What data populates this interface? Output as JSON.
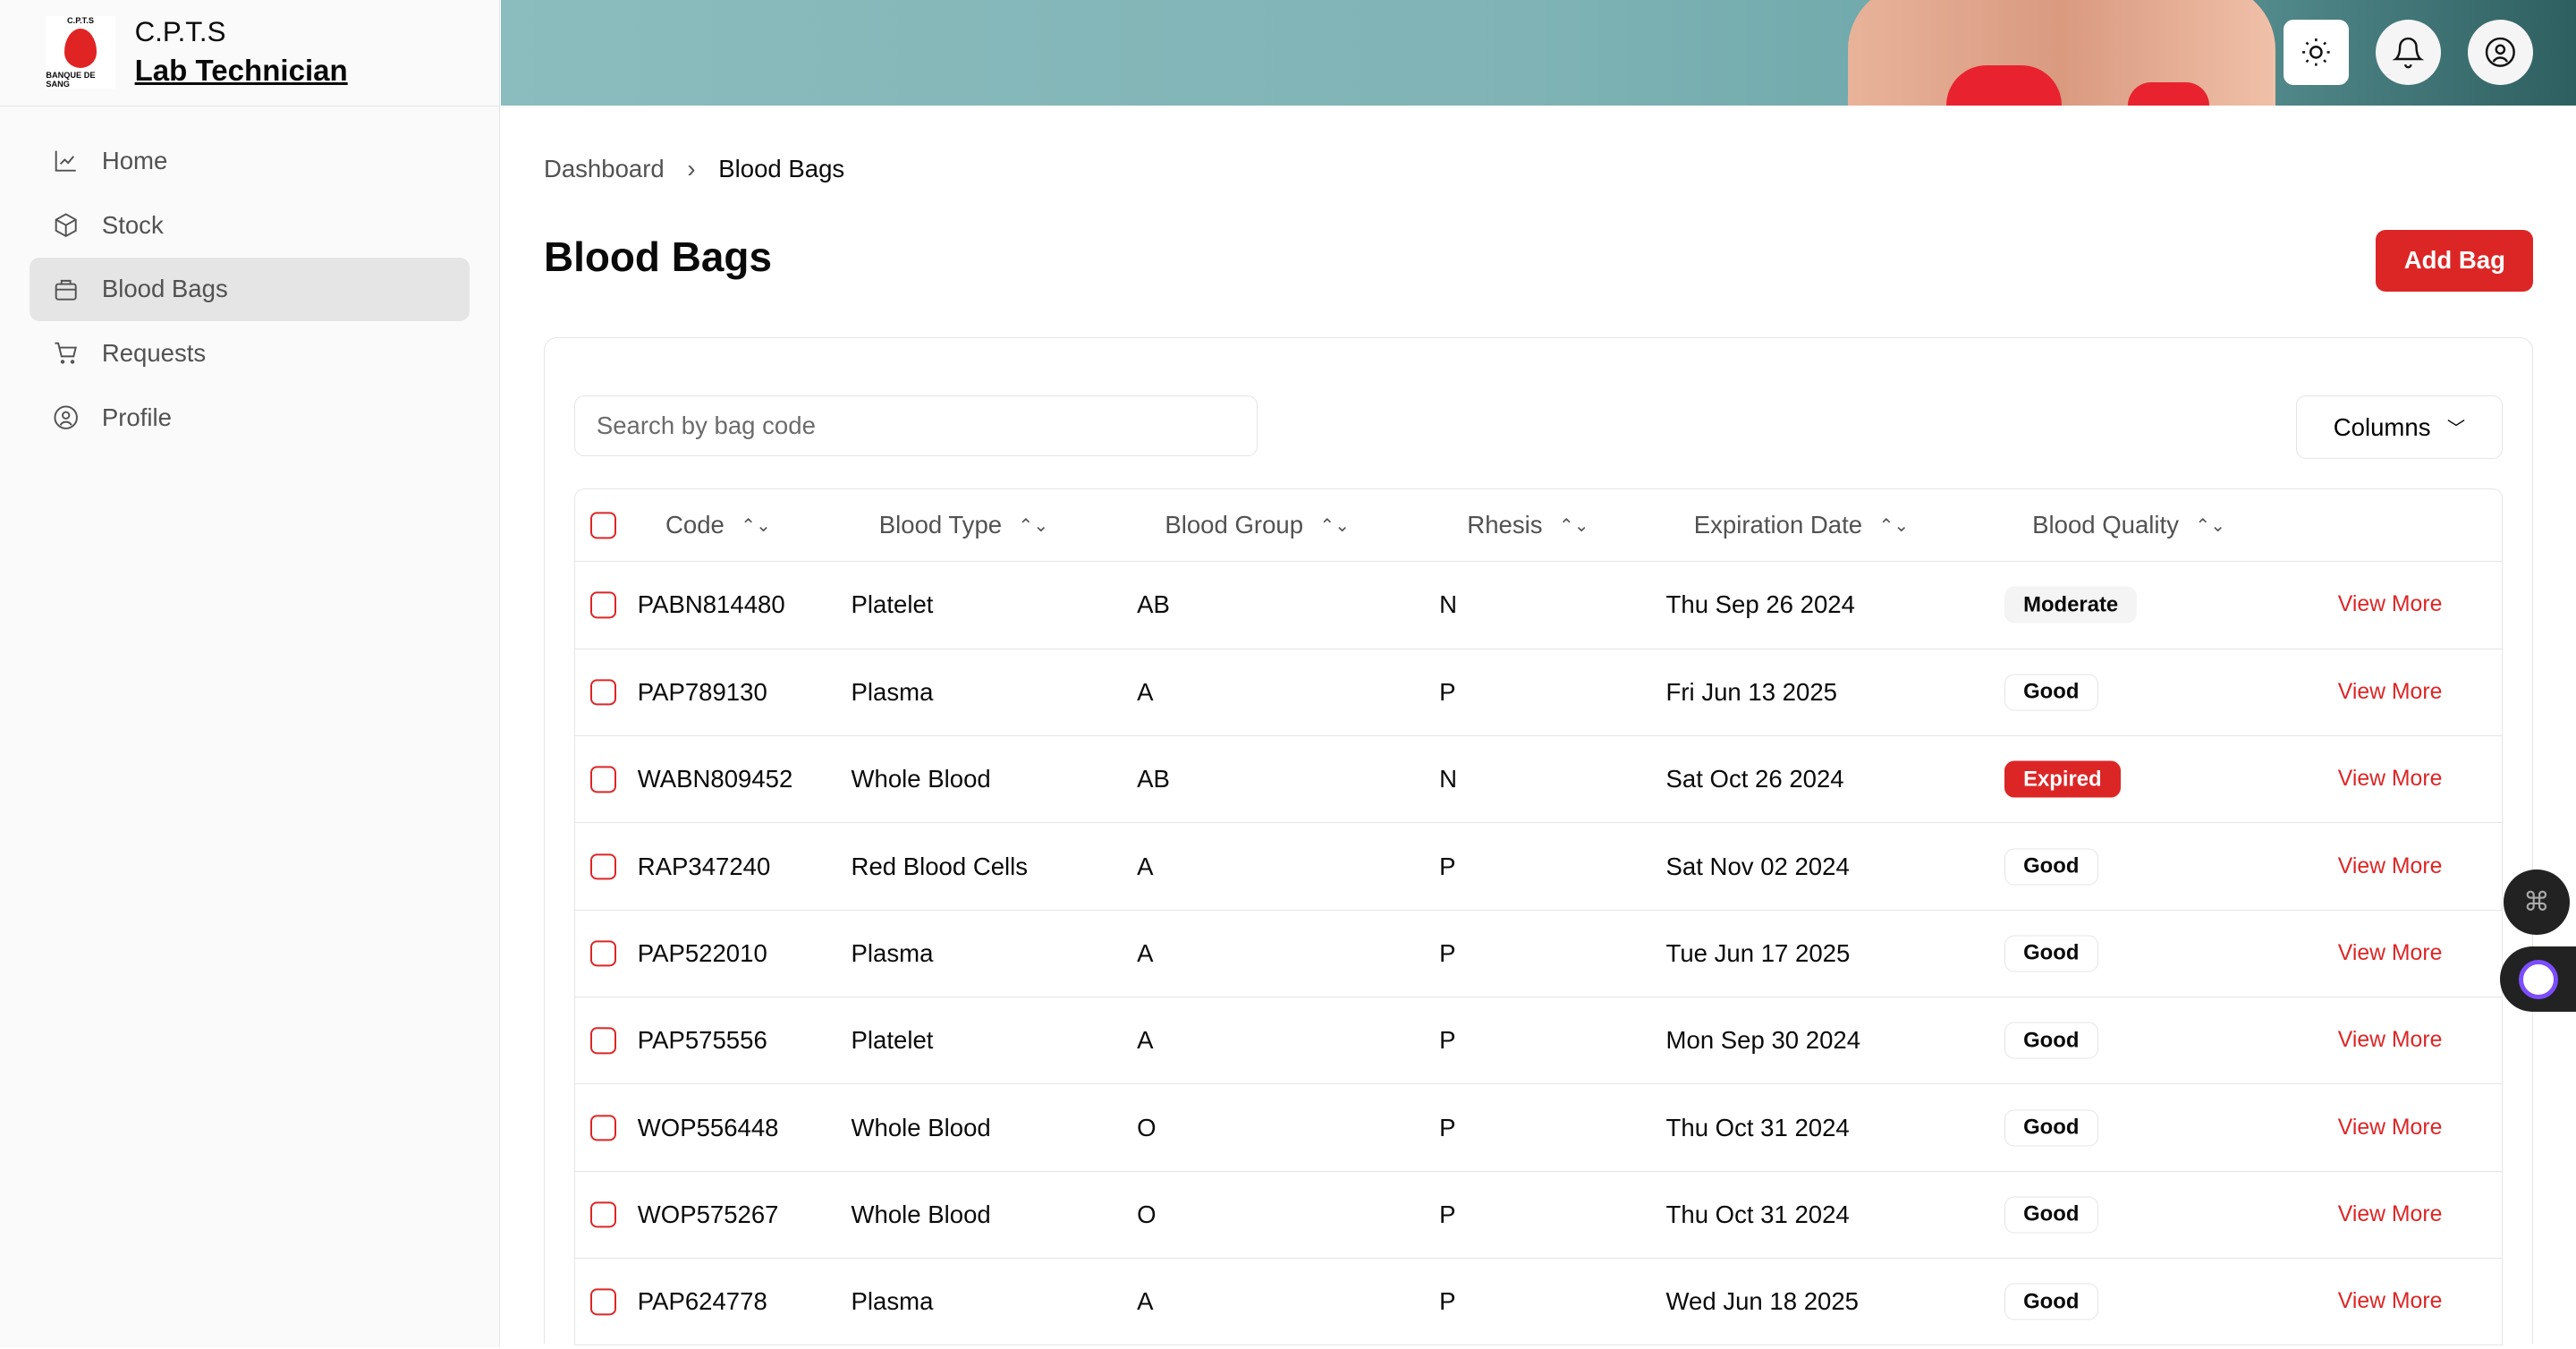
{
  "brand": {
    "logo_text_top": "C.P.T.S",
    "logo_text_bottom": "BANQUE DE SANG",
    "name": "C.P.T.S",
    "role": "Lab Technician"
  },
  "sidebar": {
    "items": [
      {
        "label": "Home",
        "icon": "chart-line-icon"
      },
      {
        "label": "Stock",
        "icon": "package-icon"
      },
      {
        "label": "Blood Bags",
        "icon": "bag-icon",
        "active": true
      },
      {
        "label": "Requests",
        "icon": "cart-icon"
      },
      {
        "label": "Profile",
        "icon": "user-circle-icon"
      }
    ]
  },
  "header": {
    "icons": [
      "sun-icon",
      "bell-icon",
      "user-circle-icon"
    ]
  },
  "breadcrumb": [
    "Dashboard",
    "Blood Bags"
  ],
  "page": {
    "title": "Blood Bags",
    "add_label": "Add Bag"
  },
  "search": {
    "placeholder": "Search by bag code",
    "value": ""
  },
  "columns_label": "Columns",
  "table": {
    "headers": [
      "Code",
      "Blood Type",
      "Blood Group",
      "Rhesis",
      "Expiration Date",
      "Blood Quality"
    ],
    "action_label": "View More",
    "rows": [
      {
        "code": "PABN814480",
        "type": "Platelet",
        "group": "AB",
        "rh": "N",
        "exp": "Thu Sep 26 2024",
        "quality": "Moderate"
      },
      {
        "code": "PAP789130",
        "type": "Plasma",
        "group": "A",
        "rh": "P",
        "exp": "Fri Jun 13 2025",
        "quality": "Good"
      },
      {
        "code": "WABN809452",
        "type": "Whole Blood",
        "group": "AB",
        "rh": "N",
        "exp": "Sat Oct 26 2024",
        "quality": "Expired"
      },
      {
        "code": "RAP347240",
        "type": "Red Blood Cells",
        "group": "A",
        "rh": "P",
        "exp": "Sat Nov 02 2024",
        "quality": "Good"
      },
      {
        "code": "PAP522010",
        "type": "Plasma",
        "group": "A",
        "rh": "P",
        "exp": "Tue Jun 17 2025",
        "quality": "Good"
      },
      {
        "code": "PAP575556",
        "type": "Platelet",
        "group": "A",
        "rh": "P",
        "exp": "Mon Sep 30 2024",
        "quality": "Good"
      },
      {
        "code": "WOP556448",
        "type": "Whole Blood",
        "group": "O",
        "rh": "P",
        "exp": "Thu Oct 31 2024",
        "quality": "Good"
      },
      {
        "code": "WOP575267",
        "type": "Whole Blood",
        "group": "O",
        "rh": "P",
        "exp": "Thu Oct 31 2024",
        "quality": "Good"
      },
      {
        "code": "PAP624778",
        "type": "Plasma",
        "group": "A",
        "rh": "P",
        "exp": "Wed Jun 18 2025",
        "quality": "Good"
      }
    ]
  },
  "colors": {
    "accent": "#dc2626",
    "banner": "#7fb3b5"
  }
}
